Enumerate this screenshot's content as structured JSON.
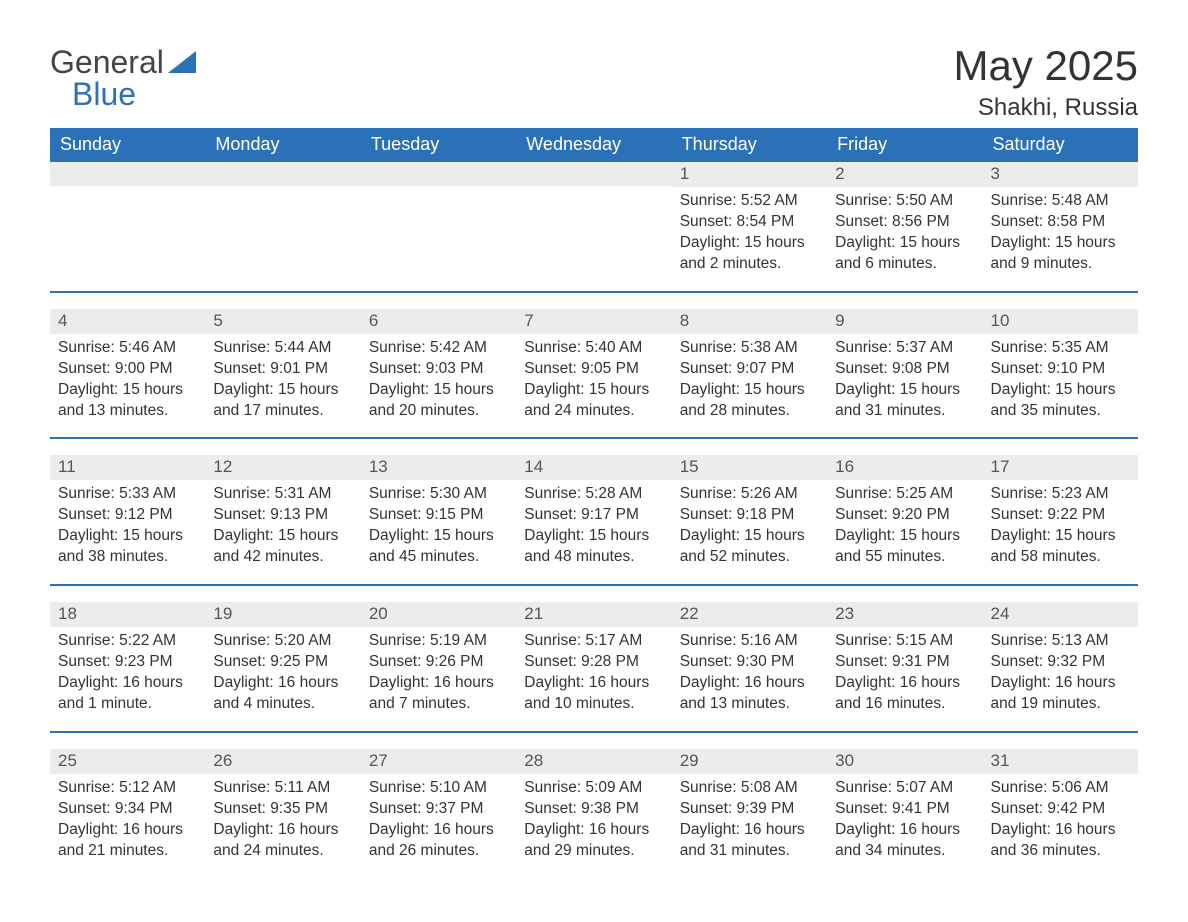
{
  "logo": {
    "word1": "General",
    "word2": "Blue",
    "triangle_color": "#2a71b8"
  },
  "colors": {
    "header_bg": "#2a71b8",
    "header_text": "#ffffff",
    "daynum_bg": "#ececec",
    "daynum_text": "#555555",
    "body_text": "#333333",
    "row_divider": "#2a71b8",
    "page_bg": "#ffffff"
  },
  "typography": {
    "title_fontsize": 42,
    "subtitle_fontsize": 24,
    "header_fontsize": 18,
    "daynum_fontsize": 17,
    "body_fontsize": 15.5,
    "font_family": "Arial"
  },
  "title": "May 2025",
  "location": "Shakhi, Russia",
  "day_headers": [
    "Sunday",
    "Monday",
    "Tuesday",
    "Wednesday",
    "Thursday",
    "Friday",
    "Saturday"
  ],
  "labels": {
    "sunrise": "Sunrise:",
    "sunset": "Sunset:",
    "daylight": "Daylight:"
  },
  "weeks": [
    [
      null,
      null,
      null,
      null,
      {
        "n": "1",
        "sunrise": "5:52 AM",
        "sunset": "8:54 PM",
        "daylight": "15 hours and 2 minutes."
      },
      {
        "n": "2",
        "sunrise": "5:50 AM",
        "sunset": "8:56 PM",
        "daylight": "15 hours and 6 minutes."
      },
      {
        "n": "3",
        "sunrise": "5:48 AM",
        "sunset": "8:58 PM",
        "daylight": "15 hours and 9 minutes."
      }
    ],
    [
      {
        "n": "4",
        "sunrise": "5:46 AM",
        "sunset": "9:00 PM",
        "daylight": "15 hours and 13 minutes."
      },
      {
        "n": "5",
        "sunrise": "5:44 AM",
        "sunset": "9:01 PM",
        "daylight": "15 hours and 17 minutes."
      },
      {
        "n": "6",
        "sunrise": "5:42 AM",
        "sunset": "9:03 PM",
        "daylight": "15 hours and 20 minutes."
      },
      {
        "n": "7",
        "sunrise": "5:40 AM",
        "sunset": "9:05 PM",
        "daylight": "15 hours and 24 minutes."
      },
      {
        "n": "8",
        "sunrise": "5:38 AM",
        "sunset": "9:07 PM",
        "daylight": "15 hours and 28 minutes."
      },
      {
        "n": "9",
        "sunrise": "5:37 AM",
        "sunset": "9:08 PM",
        "daylight": "15 hours and 31 minutes."
      },
      {
        "n": "10",
        "sunrise": "5:35 AM",
        "sunset": "9:10 PM",
        "daylight": "15 hours and 35 minutes."
      }
    ],
    [
      {
        "n": "11",
        "sunrise": "5:33 AM",
        "sunset": "9:12 PM",
        "daylight": "15 hours and 38 minutes."
      },
      {
        "n": "12",
        "sunrise": "5:31 AM",
        "sunset": "9:13 PM",
        "daylight": "15 hours and 42 minutes."
      },
      {
        "n": "13",
        "sunrise": "5:30 AM",
        "sunset": "9:15 PM",
        "daylight": "15 hours and 45 minutes."
      },
      {
        "n": "14",
        "sunrise": "5:28 AM",
        "sunset": "9:17 PM",
        "daylight": "15 hours and 48 minutes."
      },
      {
        "n": "15",
        "sunrise": "5:26 AM",
        "sunset": "9:18 PM",
        "daylight": "15 hours and 52 minutes."
      },
      {
        "n": "16",
        "sunrise": "5:25 AM",
        "sunset": "9:20 PM",
        "daylight": "15 hours and 55 minutes."
      },
      {
        "n": "17",
        "sunrise": "5:23 AM",
        "sunset": "9:22 PM",
        "daylight": "15 hours and 58 minutes."
      }
    ],
    [
      {
        "n": "18",
        "sunrise": "5:22 AM",
        "sunset": "9:23 PM",
        "daylight": "16 hours and 1 minute."
      },
      {
        "n": "19",
        "sunrise": "5:20 AM",
        "sunset": "9:25 PM",
        "daylight": "16 hours and 4 minutes."
      },
      {
        "n": "20",
        "sunrise": "5:19 AM",
        "sunset": "9:26 PM",
        "daylight": "16 hours and 7 minutes."
      },
      {
        "n": "21",
        "sunrise": "5:17 AM",
        "sunset": "9:28 PM",
        "daylight": "16 hours and 10 minutes."
      },
      {
        "n": "22",
        "sunrise": "5:16 AM",
        "sunset": "9:30 PM",
        "daylight": "16 hours and 13 minutes."
      },
      {
        "n": "23",
        "sunrise": "5:15 AM",
        "sunset": "9:31 PM",
        "daylight": "16 hours and 16 minutes."
      },
      {
        "n": "24",
        "sunrise": "5:13 AM",
        "sunset": "9:32 PM",
        "daylight": "16 hours and 19 minutes."
      }
    ],
    [
      {
        "n": "25",
        "sunrise": "5:12 AM",
        "sunset": "9:34 PM",
        "daylight": "16 hours and 21 minutes."
      },
      {
        "n": "26",
        "sunrise": "5:11 AM",
        "sunset": "9:35 PM",
        "daylight": "16 hours and 24 minutes."
      },
      {
        "n": "27",
        "sunrise": "5:10 AM",
        "sunset": "9:37 PM",
        "daylight": "16 hours and 26 minutes."
      },
      {
        "n": "28",
        "sunrise": "5:09 AM",
        "sunset": "9:38 PM",
        "daylight": "16 hours and 29 minutes."
      },
      {
        "n": "29",
        "sunrise": "5:08 AM",
        "sunset": "9:39 PM",
        "daylight": "16 hours and 31 minutes."
      },
      {
        "n": "30",
        "sunrise": "5:07 AM",
        "sunset": "9:41 PM",
        "daylight": "16 hours and 34 minutes."
      },
      {
        "n": "31",
        "sunrise": "5:06 AM",
        "sunset": "9:42 PM",
        "daylight": "16 hours and 36 minutes."
      }
    ]
  ]
}
